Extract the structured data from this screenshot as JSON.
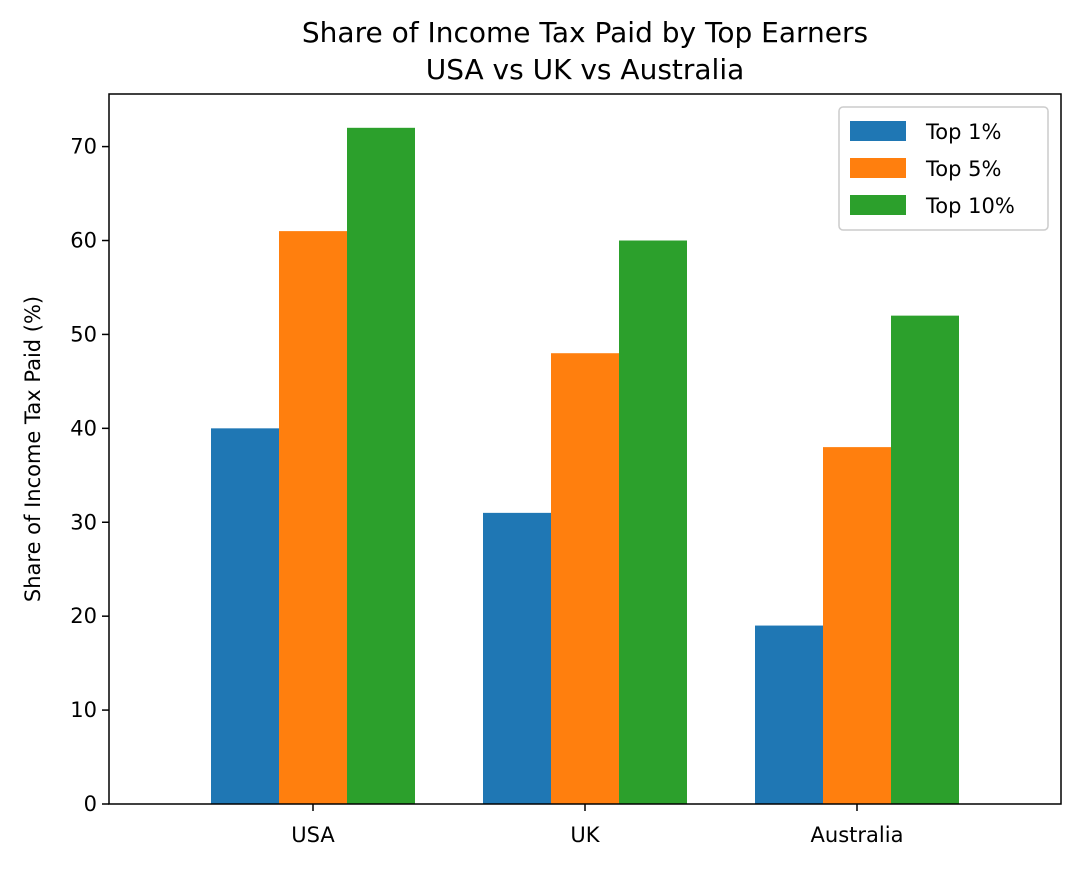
{
  "chart_data": {
    "type": "bar",
    "title": "Share of Income Tax Paid by Top Earners",
    "subtitle": "USA vs UK vs Australia",
    "xlabel": "",
    "ylabel": "Share of Income Tax Paid (%)",
    "categories": [
      "USA",
      "UK",
      "Australia"
    ],
    "series": [
      {
        "name": "Top 1%",
        "values": [
          40,
          31,
          19
        ],
        "color": "#1f77b4"
      },
      {
        "name": "Top 5%",
        "values": [
          61,
          48,
          38
        ],
        "color": "#ff7f0e"
      },
      {
        "name": "Top 10%",
        "values": [
          72,
          60,
          52
        ],
        "color": "#2ca02c"
      }
    ],
    "ylim": [
      0,
      75.6
    ],
    "yticks": [
      0,
      10,
      20,
      30,
      40,
      50,
      60,
      70
    ],
    "grid": false,
    "legend_position": "top-right"
  }
}
